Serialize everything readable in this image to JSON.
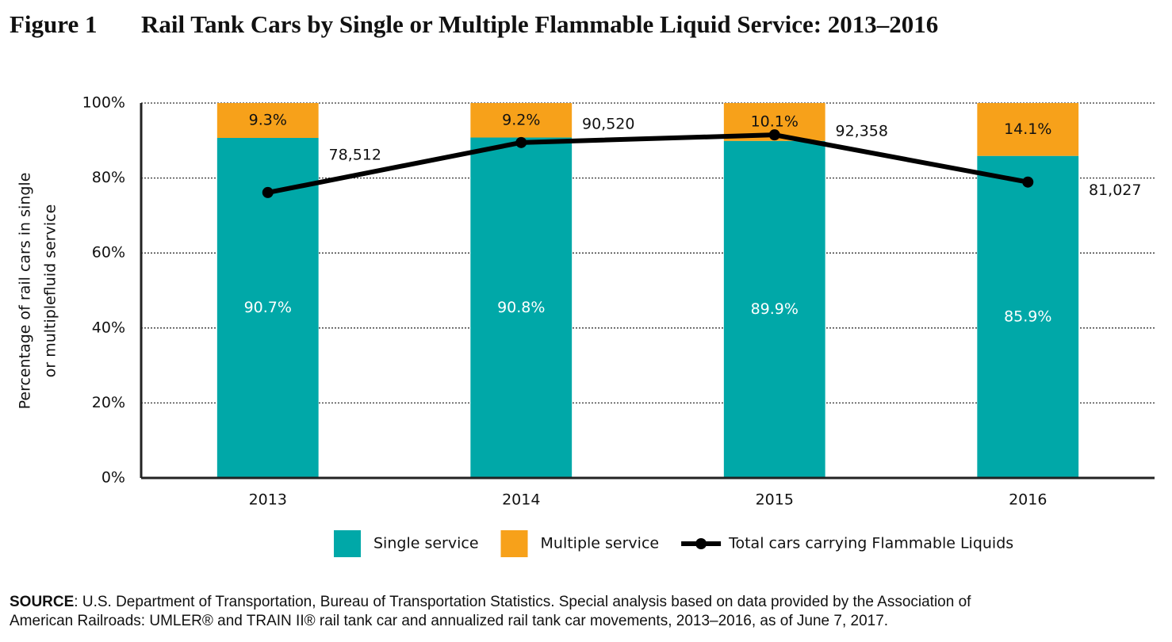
{
  "chart_data": {
    "type": "bar",
    "stacked": true,
    "figure_label": "Figure 1",
    "title": "Rail Tank Cars by Single or Multiple Flammable Liquid Service: 2013–2016",
    "y_label": [
      "Percentage of rail cars in single",
      "or multiplefluid service"
    ],
    "categories": [
      "2013",
      "2014",
      "2015",
      "2016"
    ],
    "series": [
      {
        "name": "Single service",
        "color": "#00a8a8",
        "values": [
          90.7,
          90.8,
          89.9,
          85.9
        ],
        "value_labels": [
          "90.7%",
          "90.8%",
          "89.9%",
          "85.9%"
        ]
      },
      {
        "name": "Multiple service",
        "color": "#f7a11a",
        "values": [
          9.3,
          9.2,
          10.1,
          14.1
        ],
        "value_labels": [
          "9.3%",
          "9.2%",
          "10.1%",
          "14.1%"
        ]
      },
      {
        "name": "Total cars carrying Flammable Liquids",
        "type": "line",
        "axis": "y2",
        "color": "#000000",
        "values": [
          78512,
          90520,
          92358,
          81027
        ],
        "value_labels": [
          "78,512",
          "90,520",
          "92,358",
          "81,027"
        ]
      }
    ],
    "ylim": [
      0,
      100
    ],
    "yticks": [
      {
        "value": 0,
        "label": "0%"
      },
      {
        "value": 20,
        "label": "20%"
      },
      {
        "value": 40,
        "label": "40%"
      },
      {
        "value": 60,
        "label": "60%"
      },
      {
        "value": 80,
        "label": "80%"
      },
      {
        "value": 100,
        "label": "100%"
      }
    ],
    "y2lim": [
      10000,
      100000
    ],
    "grid": true,
    "legend": "bottom"
  },
  "source": {
    "label": "SOURCE",
    "lines": [
      ": U.S. Department of Transportation, Bureau of Transportation Statistics. Special analysis based on data provided by the Association of",
      "American Railroads: UMLER® and TRAIN II® rail tank car and annualized rail tank car movements, 2013–2016, as of June 7, 2017."
    ]
  }
}
